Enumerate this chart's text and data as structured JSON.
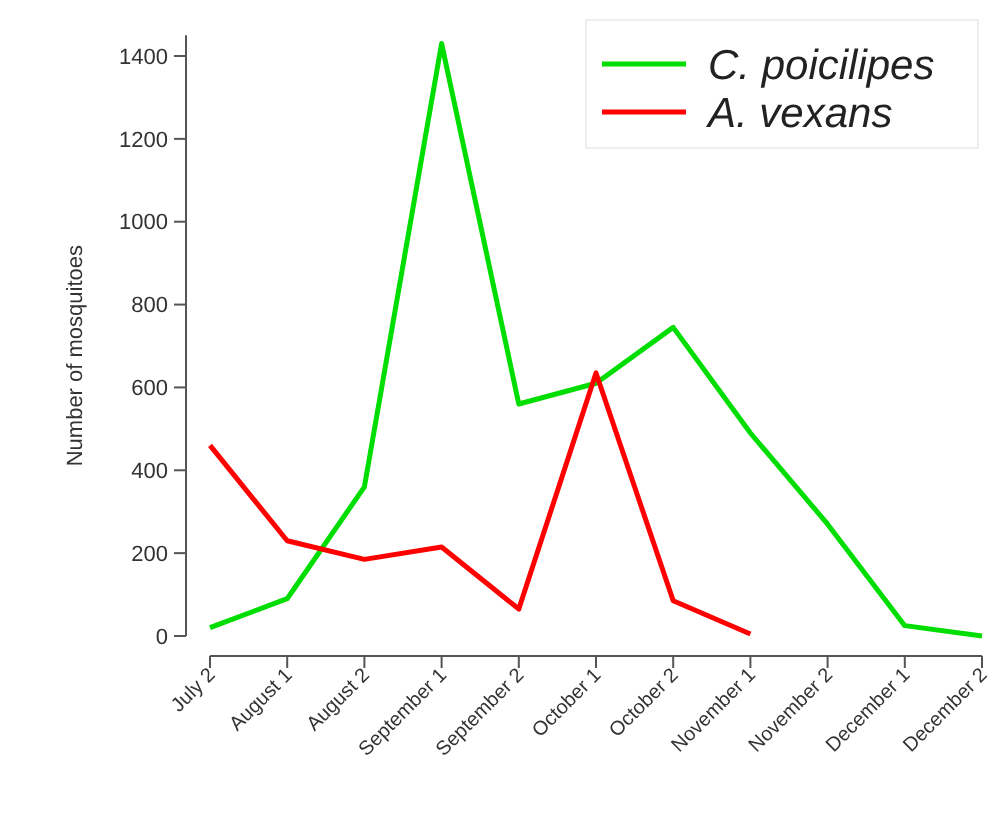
{
  "chart_data": {
    "type": "line",
    "ylabel": "Number of mosquitoes",
    "categories": [
      "July 2",
      "August 1",
      "August 2",
      "September 1",
      "September 2",
      "October 1",
      "October 2",
      "November 1",
      "November 2",
      "December 1",
      "December 2"
    ],
    "series": [
      {
        "name": "C. poicilipes",
        "color": "#00dd00",
        "values": [
          20,
          90,
          360,
          1430,
          560,
          610,
          745,
          490,
          270,
          25,
          0
        ]
      },
      {
        "name": "A. vexans",
        "color": "#ff0000",
        "values": [
          460,
          230,
          185,
          215,
          65,
          635,
          85,
          5,
          null,
          null,
          null
        ]
      }
    ],
    "ylim": [
      0,
      1450
    ],
    "yticks": [
      0,
      200,
      400,
      600,
      800,
      1000,
      1200,
      1400
    ],
    "grid": false,
    "legend": "top right",
    "marker": "none",
    "line_style": "solid"
  }
}
